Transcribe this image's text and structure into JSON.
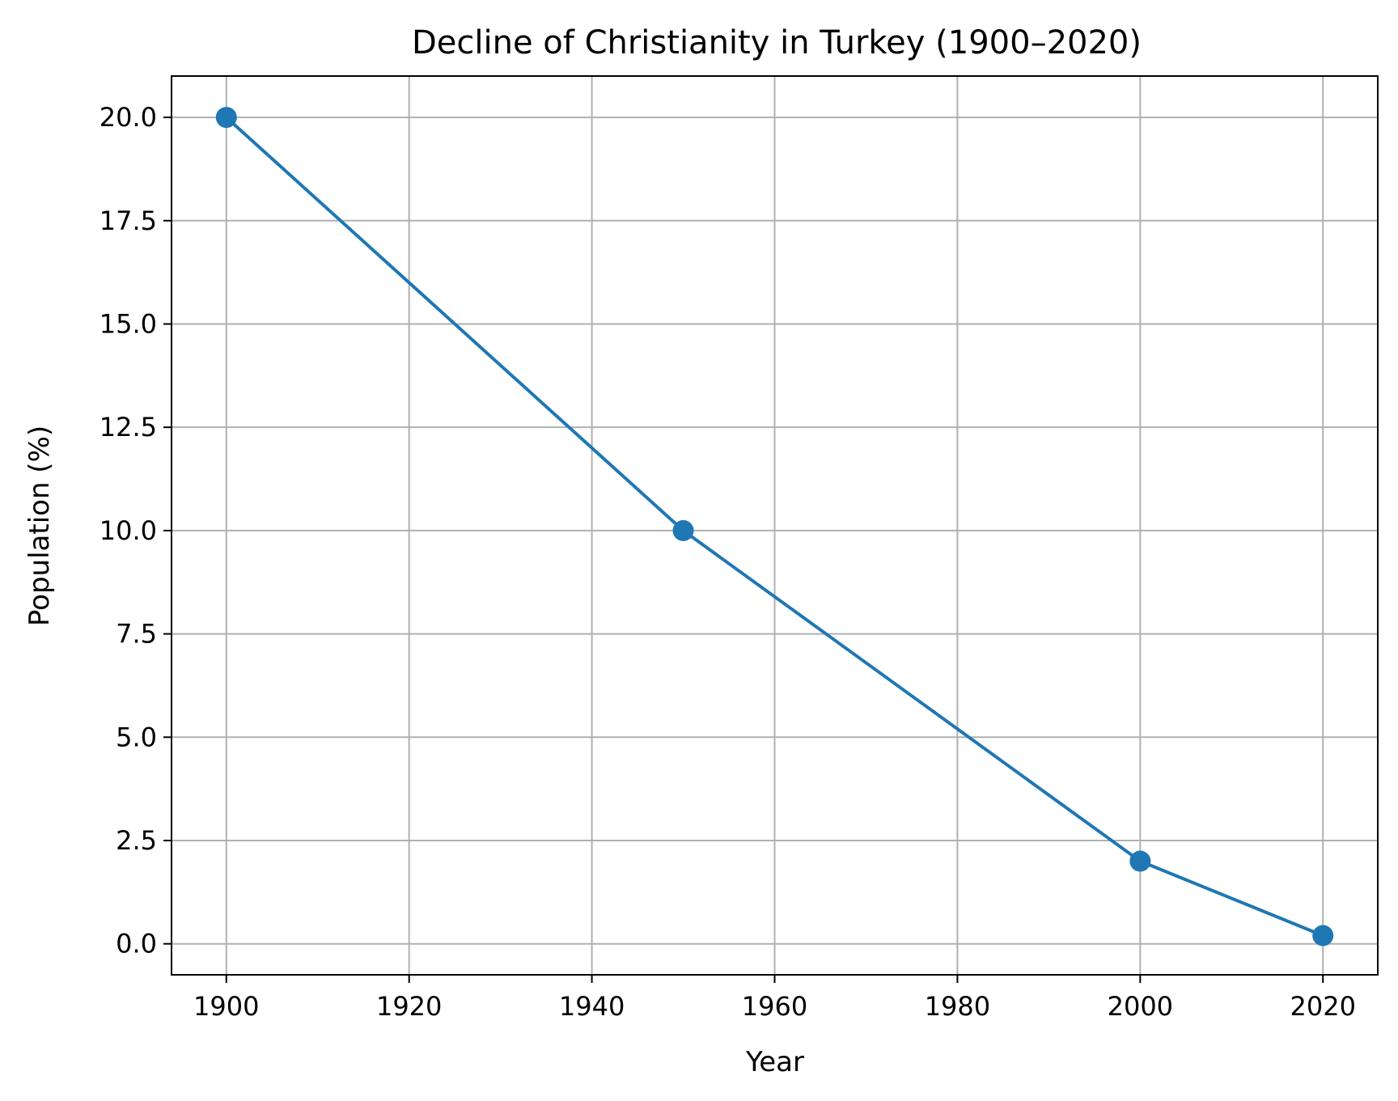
{
  "chart_data": {
    "type": "line",
    "title": "Decline of Christianity in Turkey (1900–2020)",
    "xlabel": "Year",
    "ylabel": "Population (%)",
    "x": [
      1900,
      1950,
      2000,
      2020
    ],
    "series": [
      {
        "values": [
          20.0,
          10.0,
          2.0,
          0.2
        ],
        "color": "#1f77b4"
      }
    ],
    "xlim": [
      1894,
      2026
    ],
    "ylim": [
      -0.75,
      21.0
    ],
    "xticks": [
      1900,
      1920,
      1940,
      1960,
      1980,
      2000,
      2020
    ],
    "xtick_labels": [
      "1900",
      "1920",
      "1940",
      "1960",
      "1980",
      "2000",
      "2020"
    ],
    "yticks": [
      0,
      2.5,
      5,
      7.5,
      10,
      12.5,
      15,
      17.5,
      20
    ],
    "ytick_labels": [
      "0.0",
      "2.5",
      "5.0",
      "7.5",
      "10.0",
      "12.5",
      "15.0",
      "17.5",
      "20.0"
    ],
    "grid": true,
    "legend": "none"
  }
}
